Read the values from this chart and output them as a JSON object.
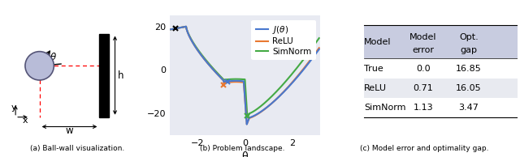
{
  "fig_width": 6.4,
  "fig_height": 1.94,
  "dpi": 100,
  "panel_a_label": "(a) Ball-wall visualization.",
  "panel_b_label": "(b) Problem landscape.",
  "panel_c_label": "(c) Model error and optimality gap.",
  "plot_bg_color": "#e8eaf2",
  "table_header_color": "#c8cce0",
  "line_colors": [
    "#4878cf",
    "#e87832",
    "#44aa44"
  ],
  "xlabel": "θ",
  "ylim": [
    -30,
    25
  ],
  "xlim": [
    -3.2,
    3.2
  ],
  "yticks": [
    -20,
    0,
    20
  ],
  "xticks": [
    -2,
    0,
    2
  ],
  "table_models": [
    "True",
    "ReLU",
    "SimNorm"
  ],
  "table_model_error": [
    "0.0",
    "0.71",
    "1.13"
  ],
  "table_opt_gap": [
    "16.85",
    "16.05",
    "3.47"
  ],
  "col_headers": [
    "Model",
    "Model\nerror",
    "Opt.\ngap"
  ],
  "row_alt_color": "#e8eaf0"
}
